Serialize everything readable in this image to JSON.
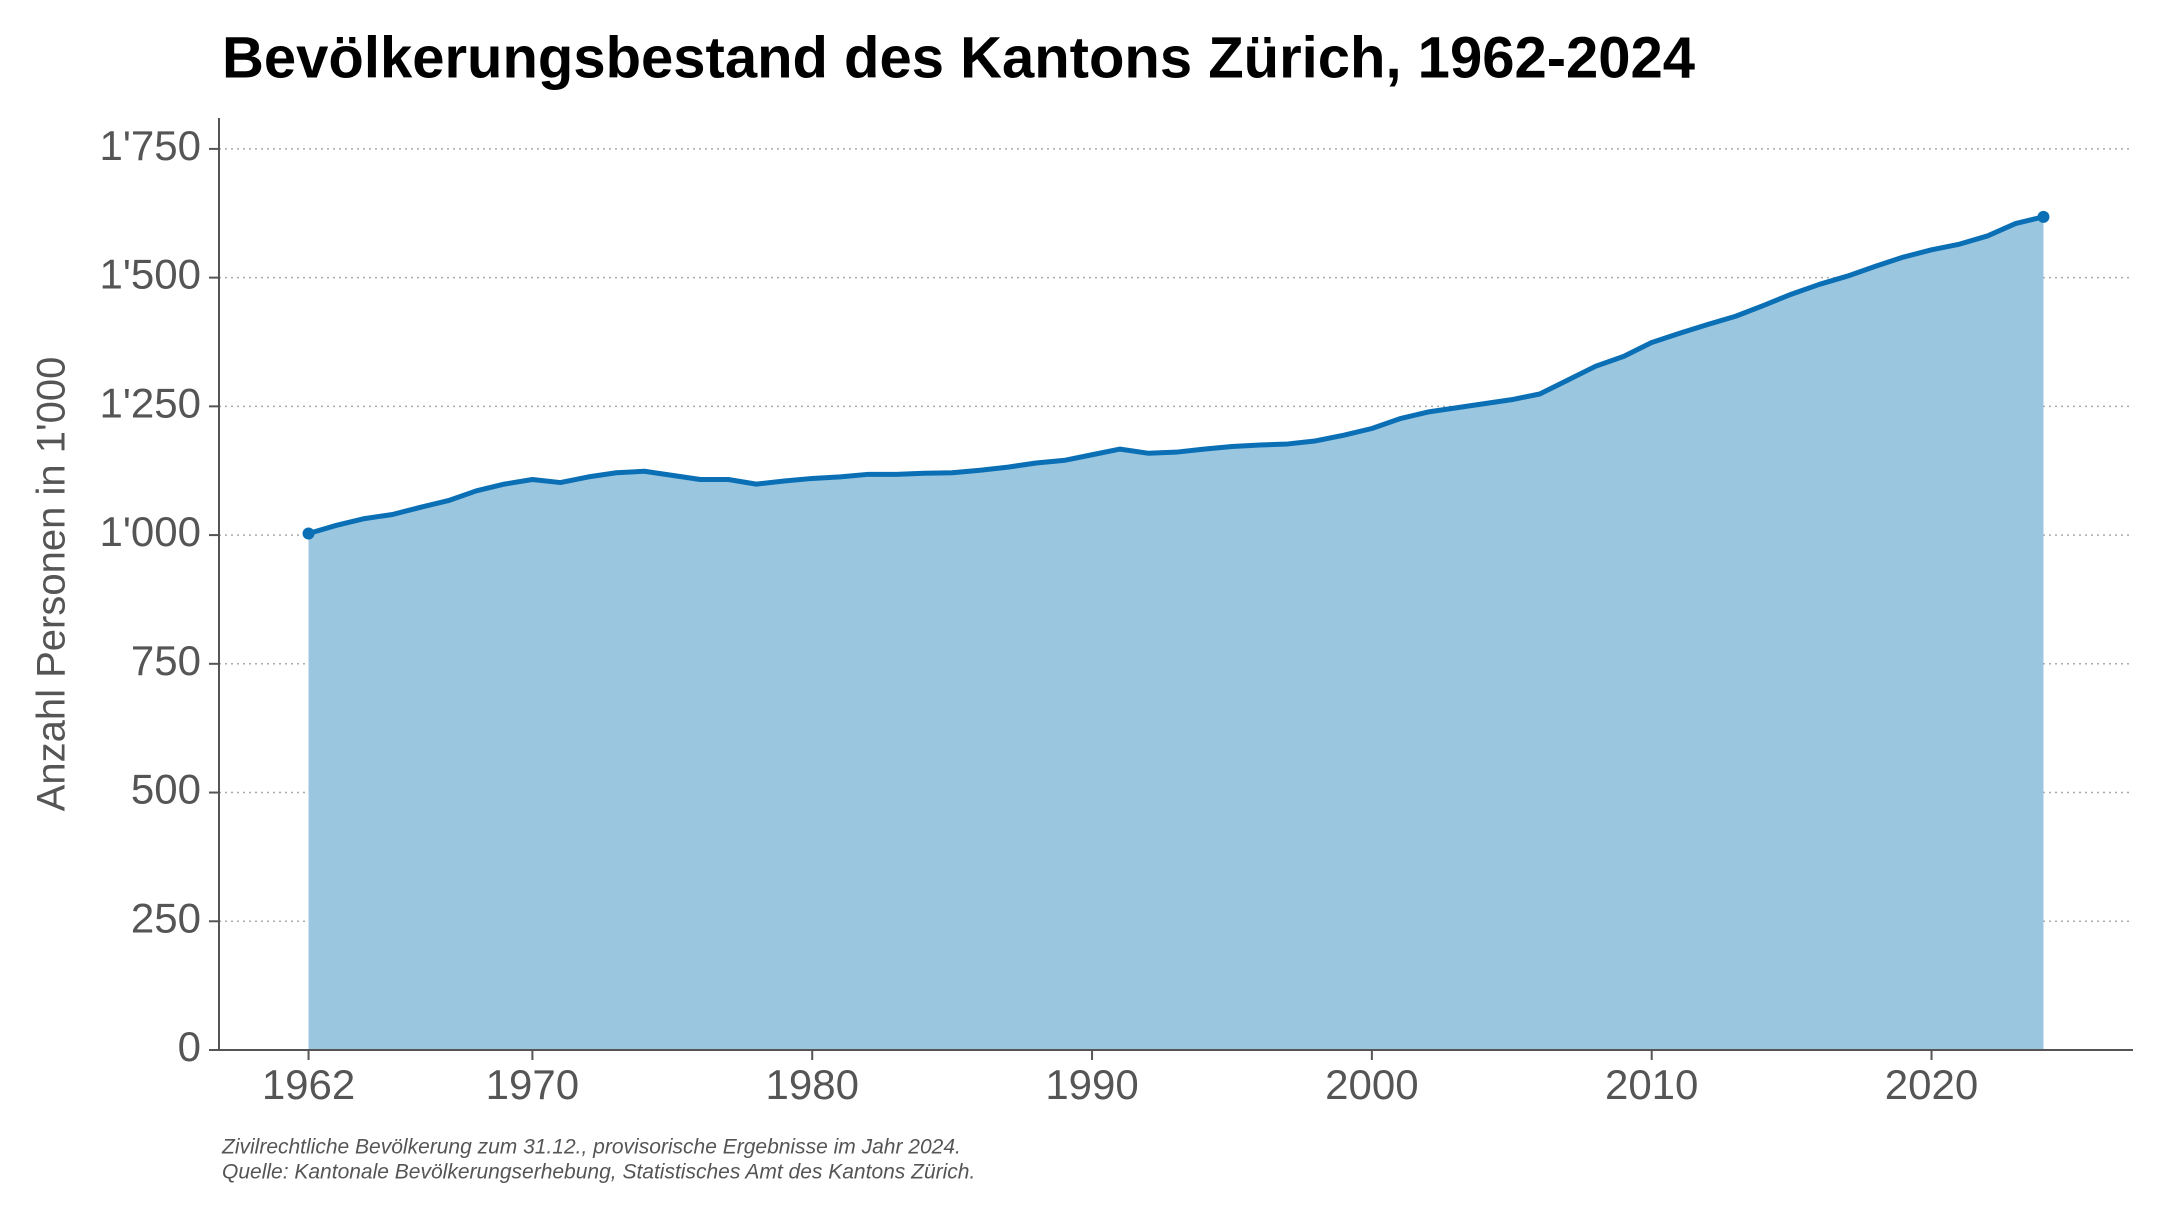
{
  "chart_data": {
    "type": "area",
    "title": "Bevölkerungsbestand des Kantons Zürich, 1962-2024",
    "ylabel": "Anzahl Personen in 1'000",
    "notes": [
      "Zivilrechtliche Bevölkerung zum 31.12., provisorische Ergebnisse im Jahr 2024.",
      "Quelle: Kantonale Bevölkerungserhebung, Statistisches Amt des Kantons Zürich."
    ],
    "x": [
      1962,
      1963,
      1964,
      1965,
      1966,
      1967,
      1968,
      1969,
      1970,
      1971,
      1972,
      1973,
      1974,
      1975,
      1976,
      1977,
      1978,
      1979,
      1980,
      1981,
      1982,
      1983,
      1984,
      1985,
      1986,
      1987,
      1988,
      1989,
      1990,
      1991,
      1992,
      1993,
      1994,
      1995,
      1996,
      1997,
      1998,
      1999,
      2000,
      2001,
      2002,
      2003,
      2004,
      2005,
      2006,
      2007,
      2008,
      2009,
      2010,
      2011,
      2012,
      2013,
      2014,
      2015,
      2016,
      2017,
      2018,
      2019,
      2020,
      2021,
      2022,
      2023,
      2024
    ],
    "values": [
      1003,
      1019,
      1032,
      1040,
      1054,
      1067,
      1086,
      1099,
      1108,
      1102,
      1113,
      1121,
      1124,
      1116,
      1108,
      1108,
      1099,
      1105,
      1110,
      1113,
      1118,
      1118,
      1120,
      1121,
      1126,
      1132,
      1140,
      1145,
      1156,
      1167,
      1159,
      1161,
      1167,
      1172,
      1175,
      1177,
      1183,
      1194,
      1207,
      1226,
      1239,
      1247,
      1255,
      1263,
      1274,
      1301,
      1328,
      1347,
      1374,
      1392,
      1409,
      1425,
      1446,
      1468,
      1487,
      1503,
      1522,
      1540,
      1554,
      1565,
      1581,
      1605,
      1618
    ],
    "line_color": "#0a6fb4",
    "fill_color": "#9ac6e0",
    "xlim": [
      1958.8,
      2027.2
    ],
    "xticks": [
      1962,
      1970,
      1980,
      1990,
      2000,
      2010,
      2020
    ],
    "ylim": [
      0,
      1810
    ],
    "yticks": [
      0,
      250,
      500,
      750,
      {
        "value": 1000,
        "label": "1'000"
      },
      {
        "value": 1250,
        "label": "1'250"
      },
      {
        "value": 1500,
        "label": "1'500"
      },
      {
        "value": 1750,
        "label": "1'750"
      }
    ],
    "grid": true
  }
}
